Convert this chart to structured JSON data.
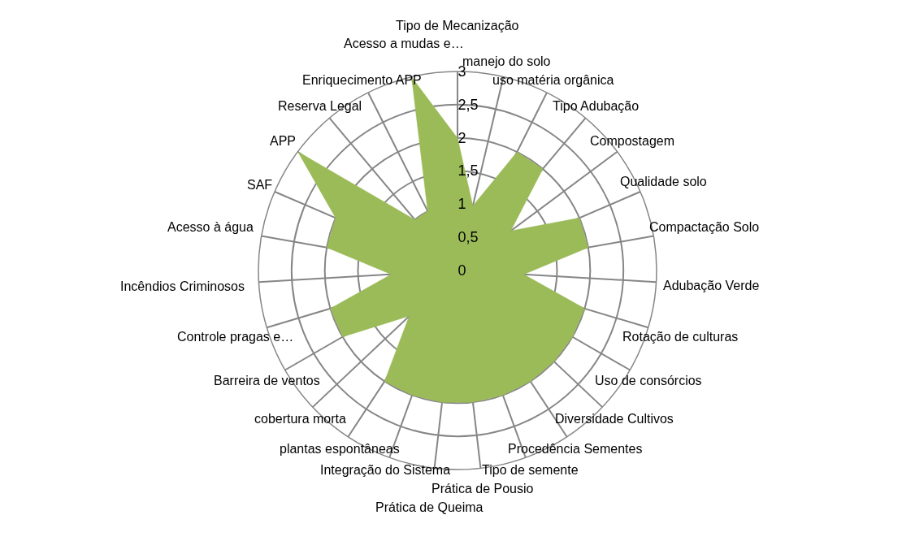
{
  "chart_data": {
    "type": "radar",
    "categories": [
      "Tipo de Mecanização",
      "manejo do solo",
      "uso matéria orgânica",
      "Tipo Adubação",
      "Compostagem",
      "Qualidade solo",
      "Compactação Solo",
      "Adubação Verde",
      "Rotação de culturas",
      "Uso de consórcios",
      "Diversidade Cultivos",
      "Procedência Sementes",
      "Tipo de semente",
      "Prática de Pousio",
      "Prática de Queima",
      "Integração do Sistema",
      "plantas espontâneas",
      "cobertura morta",
      "Barreira de ventos",
      "Controle pragas e…",
      "Incêndios Criminosos",
      "Acesso à água",
      "SAF",
      "APP",
      "Reserva Legal",
      "Enriquecimento APP",
      "Acesso a mudas e…"
    ],
    "series": [
      {
        "color": "#9bbb59",
        "values": [
          2,
          1,
          2,
          2,
          1,
          2,
          2,
          1,
          2,
          2,
          2,
          2,
          2,
          2,
          2,
          2,
          2,
          1,
          2,
          2,
          1,
          2,
          2,
          3,
          1,
          1,
          3
        ]
      }
    ],
    "ylim": [
      0,
      3
    ],
    "yticks": [
      {
        "value": 0,
        "label": "0"
      },
      {
        "value": 0.5,
        "label": "0,5"
      },
      {
        "value": 1,
        "label": "1"
      },
      {
        "value": 1.5,
        "label": "1,5"
      },
      {
        "value": 2,
        "label": "2"
      },
      {
        "value": 2.5,
        "label": "2,5"
      },
      {
        "value": 3,
        "label": "3"
      }
    ],
    "grid": true
  }
}
